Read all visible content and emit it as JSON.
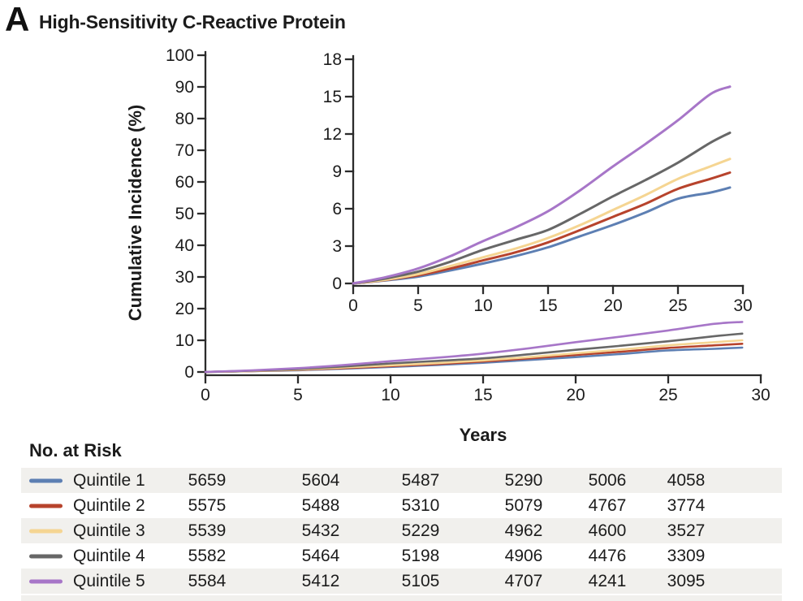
{
  "panel": {
    "label": "A",
    "title": "High-Sensitivity C-Reactive Protein"
  },
  "chart_data": {
    "type": "line",
    "title": "High-Sensitivity C-Reactive Protein",
    "xlabel": "Years",
    "ylabel": "Cumulative Incidence (%)",
    "x": [
      0,
      2.5,
      5,
      7.5,
      10,
      12.5,
      15,
      17.5,
      20,
      22.5,
      25,
      27.5,
      29
    ],
    "series": [
      {
        "name": "Quintile 1",
        "color": "#5d7fb3",
        "values": [
          0,
          0.25,
          0.55,
          1.05,
          1.6,
          2.2,
          2.9,
          3.8,
          4.7,
          5.7,
          6.8,
          7.3,
          7.7
        ]
      },
      {
        "name": "Quintile 2",
        "color": "#b7432c",
        "values": [
          0,
          0.28,
          0.65,
          1.2,
          1.85,
          2.5,
          3.3,
          4.3,
          5.35,
          6.4,
          7.6,
          8.4,
          8.9
        ]
      },
      {
        "name": "Quintile 3",
        "color": "#f5d592",
        "values": [
          0,
          0.3,
          0.75,
          1.4,
          2.1,
          2.8,
          3.65,
          4.7,
          5.9,
          7.1,
          8.4,
          9.4,
          10.0
        ]
      },
      {
        "name": "Quintile 4",
        "color": "#676767",
        "values": [
          0,
          0.4,
          0.95,
          1.75,
          2.7,
          3.5,
          4.3,
          5.6,
          7.0,
          8.3,
          9.7,
          11.3,
          12.1
        ]
      },
      {
        "name": "Quintile 5",
        "color": "#a776c8",
        "values": [
          0,
          0.5,
          1.2,
          2.2,
          3.4,
          4.5,
          5.8,
          7.5,
          9.4,
          11.2,
          13.1,
          15.2,
          15.8
        ]
      }
    ],
    "main_axis": {
      "xlim": [
        0,
        30
      ],
      "ylim": [
        0,
        100
      ],
      "xticks": [
        0,
        5,
        10,
        15,
        20,
        25,
        30
      ],
      "yticks": [
        0,
        10,
        20,
        30,
        40,
        50,
        60,
        70,
        80,
        90,
        100
      ]
    },
    "inset_axis": {
      "xlim": [
        0,
        30
      ],
      "ylim": [
        0,
        18
      ],
      "xticks": [
        0,
        5,
        10,
        15,
        20,
        25,
        30
      ],
      "yticks": [
        0,
        3,
        6,
        9,
        12,
        15,
        18
      ]
    },
    "grid": false,
    "legend_position": "risk-table-left"
  },
  "risk_table": {
    "header": "No. at Risk",
    "rows": [
      {
        "name": "Quintile 1",
        "color": "#5d7fb3",
        "values": [
          "5659",
          "5604",
          "5487",
          "5290",
          "5006",
          "4058"
        ]
      },
      {
        "name": "Quintile 2",
        "color": "#b7432c",
        "values": [
          "5575",
          "5488",
          "5310",
          "5079",
          "4767",
          "3774"
        ]
      },
      {
        "name": "Quintile 3",
        "color": "#f5d592",
        "values": [
          "5539",
          "5432",
          "5229",
          "4962",
          "4600",
          "3527"
        ]
      },
      {
        "name": "Quintile 4",
        "color": "#676767",
        "values": [
          "5582",
          "5464",
          "5198",
          "4906",
          "4476",
          "3309"
        ]
      },
      {
        "name": "Quintile 5",
        "color": "#a776c8",
        "values": [
          "5584",
          "5412",
          "5105",
          "4707",
          "4241",
          "3095"
        ]
      }
    ]
  },
  "colors": {
    "axis": "#2b2b2b",
    "tick_text": "#1c1c1c",
    "stripe": "#f1f0ed"
  }
}
